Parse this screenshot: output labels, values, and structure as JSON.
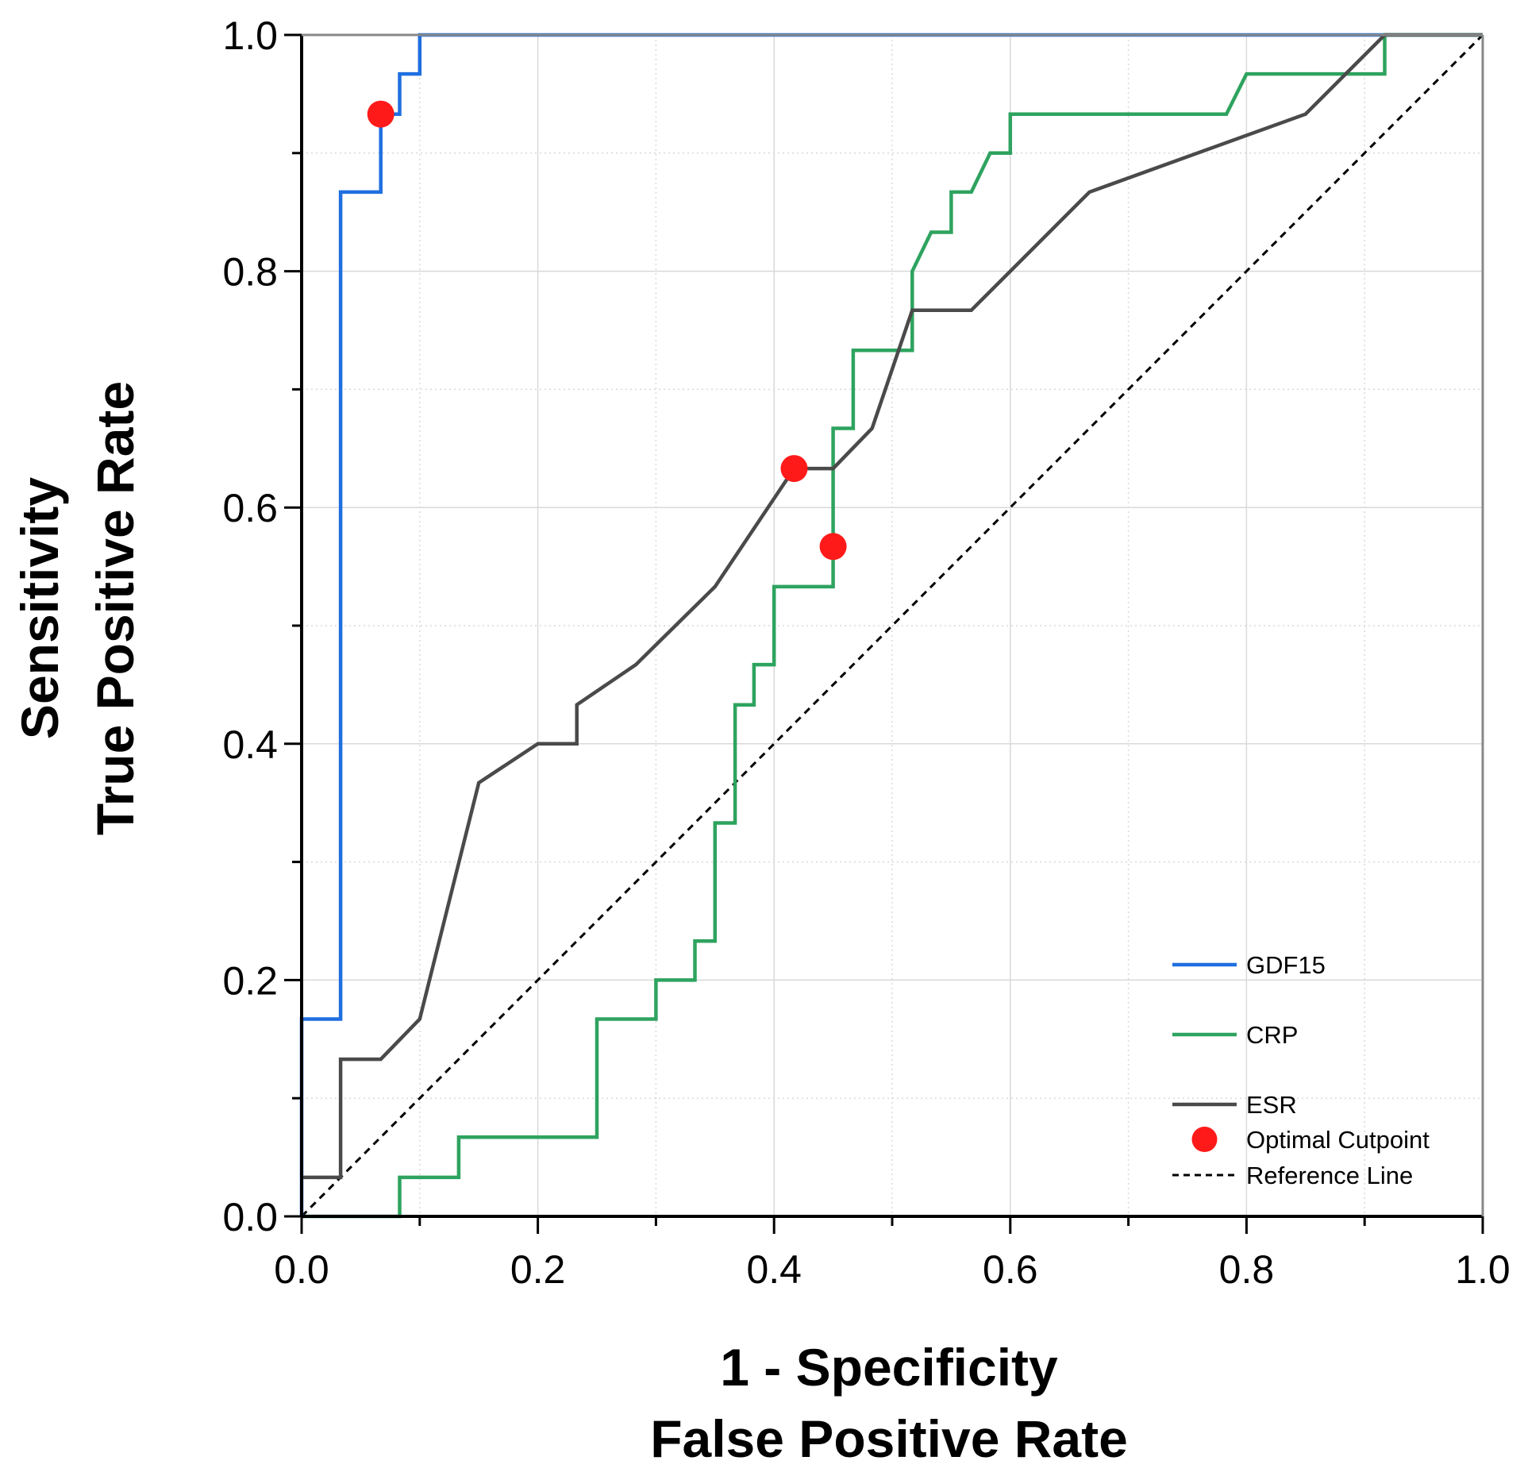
{
  "chart_data": {
    "type": "line",
    "title": "",
    "xlabel": [
      "1 - Specificity",
      "False Positive Rate"
    ],
    "ylabel": [
      "Sensitivity",
      "True Positive Rate"
    ],
    "xlim": [
      0,
      1
    ],
    "ylim": [
      0,
      1
    ],
    "x_ticks": [
      "0.0",
      "0.2",
      "0.4",
      "0.6",
      "0.8",
      "1.0"
    ],
    "y_ticks": [
      "0.0",
      "0.2",
      "0.4",
      "0.6",
      "0.8",
      "1.0"
    ],
    "grid": true,
    "legend_position": "bottom-right",
    "colors": {
      "GDF15": "#1f6fe0",
      "CRP": "#2ea35f",
      "ESR": "#4a4a4a",
      "optimal": "#ff1a1a",
      "reference": "#000000",
      "grid": "#d9d9d9"
    },
    "series": [
      {
        "name": "GDF15",
        "style": "solid",
        "points": [
          [
            0,
            0
          ],
          [
            0,
            0.167
          ],
          [
            0.033,
            0.167
          ],
          [
            0.033,
            0.867
          ],
          [
            0.067,
            0.867
          ],
          [
            0.067,
            0.933
          ],
          [
            0.083,
            0.933
          ],
          [
            0.083,
            0.967
          ],
          [
            0.1,
            0.967
          ],
          [
            0.1,
            1.0
          ],
          [
            1.0,
            1.0
          ]
        ]
      },
      {
        "name": "CRP",
        "style": "solid",
        "points": [
          [
            0,
            0
          ],
          [
            0.083,
            0
          ],
          [
            0.083,
            0.033
          ],
          [
            0.133,
            0.033
          ],
          [
            0.133,
            0.067
          ],
          [
            0.25,
            0.067
          ],
          [
            0.25,
            0.167
          ],
          [
            0.3,
            0.167
          ],
          [
            0.3,
            0.2
          ],
          [
            0.333,
            0.2
          ],
          [
            0.333,
            0.233
          ],
          [
            0.35,
            0.233
          ],
          [
            0.35,
            0.333
          ],
          [
            0.367,
            0.333
          ],
          [
            0.367,
            0.433
          ],
          [
            0.383,
            0.433
          ],
          [
            0.383,
            0.467
          ],
          [
            0.4,
            0.467
          ],
          [
            0.4,
            0.533
          ],
          [
            0.45,
            0.533
          ],
          [
            0.45,
            0.667
          ],
          [
            0.467,
            0.667
          ],
          [
            0.467,
            0.733
          ],
          [
            0.517,
            0.733
          ],
          [
            0.517,
            0.8
          ],
          [
            0.533,
            0.833
          ],
          [
            0.55,
            0.833
          ],
          [
            0.55,
            0.867
          ],
          [
            0.567,
            0.867
          ],
          [
            0.583,
            0.9
          ],
          [
            0.6,
            0.9
          ],
          [
            0.6,
            0.933
          ],
          [
            0.783,
            0.933
          ],
          [
            0.8,
            0.967
          ],
          [
            0.917,
            0.967
          ],
          [
            0.917,
            1.0
          ],
          [
            1.0,
            1.0
          ]
        ]
      },
      {
        "name": "ESR",
        "style": "solid",
        "points": [
          [
            0,
            0.033
          ],
          [
            0.033,
            0.033
          ],
          [
            0.033,
            0.133
          ],
          [
            0.067,
            0.133
          ],
          [
            0.1,
            0.167
          ],
          [
            0.15,
            0.367
          ],
          [
            0.2,
            0.4
          ],
          [
            0.233,
            0.4
          ],
          [
            0.233,
            0.433
          ],
          [
            0.283,
            0.467
          ],
          [
            0.35,
            0.533
          ],
          [
            0.417,
            0.633
          ],
          [
            0.45,
            0.633
          ],
          [
            0.483,
            0.667
          ],
          [
            0.517,
            0.767
          ],
          [
            0.567,
            0.767
          ],
          [
            0.667,
            0.867
          ],
          [
            0.85,
            0.933
          ],
          [
            0.917,
            1.0
          ],
          [
            1.0,
            1.0
          ]
        ]
      },
      {
        "name": "Optimal Cutpoint",
        "style": "marker",
        "points": [
          [
            0.067,
            0.933
          ],
          [
            0.417,
            0.633
          ],
          [
            0.45,
            0.567
          ]
        ]
      },
      {
        "name": "Reference Line",
        "style": "dashed",
        "points": [
          [
            0,
            0
          ],
          [
            1,
            1
          ]
        ]
      }
    ]
  }
}
